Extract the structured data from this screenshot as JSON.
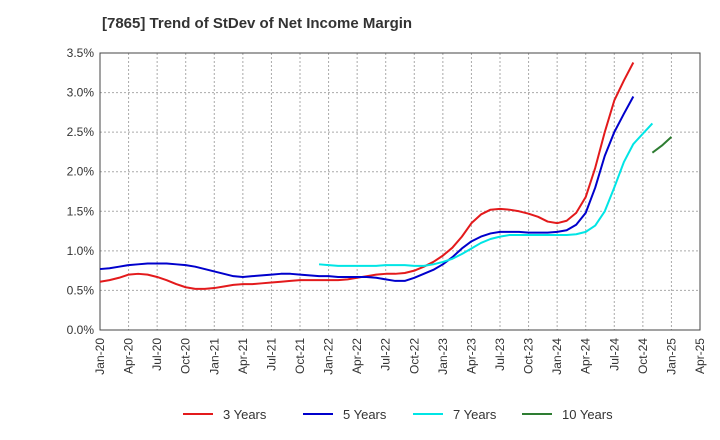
{
  "chart_data": {
    "type": "line",
    "title": "[7865]  Trend of StDev of Net Income Margin",
    "xlabel": "",
    "ylabel": "",
    "x_ticks": [
      "Jan-20",
      "Apr-20",
      "Jul-20",
      "Oct-20",
      "Jan-21",
      "Apr-21",
      "Jul-21",
      "Oct-21",
      "Jan-22",
      "Apr-22",
      "Jul-22",
      "Oct-22",
      "Jan-23",
      "Apr-23",
      "Jul-23",
      "Oct-23",
      "Jan-24",
      "Apr-24",
      "Jul-24",
      "Oct-24",
      "Jan-25",
      "Apr-25"
    ],
    "y_ticks": [
      "0.0%",
      "0.5%",
      "1.0%",
      "1.5%",
      "2.0%",
      "2.5%",
      "3.0%",
      "3.5%"
    ],
    "ylim": [
      0,
      3.5
    ],
    "y_unit": "%",
    "grid": true,
    "legend_position": "bottom",
    "series": [
      {
        "name": "3 Years",
        "color": "#e31a1c",
        "start": "Jan-20",
        "values": [
          0.61,
          0.63,
          0.66,
          0.7,
          0.71,
          0.7,
          0.67,
          0.63,
          0.58,
          0.54,
          0.52,
          0.52,
          0.53,
          0.55,
          0.57,
          0.58,
          0.58,
          0.59,
          0.6,
          0.61,
          0.62,
          0.63,
          0.63,
          0.63,
          0.63,
          0.63,
          0.64,
          0.66,
          0.68,
          0.7,
          0.71,
          0.71,
          0.72,
          0.75,
          0.8,
          0.86,
          0.94,
          1.04,
          1.18,
          1.35,
          1.46,
          1.52,
          1.53,
          1.52,
          1.5,
          1.47,
          1.43,
          1.37,
          1.35,
          1.38,
          1.48,
          1.68,
          2.05,
          2.5,
          2.9,
          3.15,
          3.38
        ]
      },
      {
        "name": "5 Years",
        "color": "#0000cc",
        "start": "Jan-20",
        "values": [
          0.77,
          0.78,
          0.8,
          0.82,
          0.83,
          0.84,
          0.84,
          0.84,
          0.83,
          0.82,
          0.8,
          0.77,
          0.74,
          0.71,
          0.68,
          0.67,
          0.68,
          0.69,
          0.7,
          0.71,
          0.71,
          0.7,
          0.69,
          0.68,
          0.68,
          0.67,
          0.67,
          0.67,
          0.67,
          0.66,
          0.64,
          0.62,
          0.62,
          0.66,
          0.71,
          0.76,
          0.83,
          0.92,
          1.03,
          1.12,
          1.18,
          1.22,
          1.24,
          1.24,
          1.24,
          1.23,
          1.23,
          1.23,
          1.24,
          1.26,
          1.33,
          1.48,
          1.8,
          2.2,
          2.5,
          2.73,
          2.95
        ]
      },
      {
        "name": "7 Years",
        "color": "#00e5e5",
        "start": "Dec-21",
        "values": [
          0.83,
          0.82,
          0.81,
          0.81,
          0.81,
          0.81,
          0.81,
          0.82,
          0.82,
          0.82,
          0.81,
          0.81,
          0.83,
          0.86,
          0.9,
          0.96,
          1.03,
          1.1,
          1.15,
          1.18,
          1.2,
          1.2,
          1.2,
          1.2,
          1.2,
          1.2,
          1.2,
          1.21,
          1.24,
          1.32,
          1.5,
          1.8,
          2.12,
          2.35,
          2.48,
          2.61
        ]
      },
      {
        "name": "10 Years",
        "color": "#2e7d32",
        "start": "Nov-24",
        "values": [
          2.24,
          2.33,
          2.44
        ]
      }
    ]
  }
}
